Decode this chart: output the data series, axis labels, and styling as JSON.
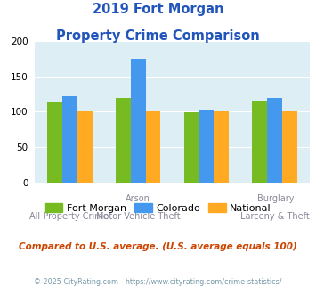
{
  "title_line1": "2019 Fort Morgan",
  "title_line2": "Property Crime Comparison",
  "title_color": "#2255bb",
  "cat_labels_top": [
    "",
    "Arson",
    "",
    "Burglary"
  ],
  "cat_labels_bot": [
    "All Property Crime",
    "Motor Vehicle Theft",
    "",
    "Larceny & Theft"
  ],
  "fort_morgan": [
    113,
    120,
    99,
    116
  ],
  "colorado": [
    122,
    175,
    103,
    120
  ],
  "national": [
    100,
    100,
    100,
    100
  ],
  "color_fm": "#77bb22",
  "color_co": "#4499ee",
  "color_na": "#ffaa22",
  "ylim": [
    0,
    200
  ],
  "yticks": [
    0,
    50,
    100,
    150,
    200
  ],
  "bg_color": "#ddeef5",
  "note": "Compared to U.S. average. (U.S. average equals 100)",
  "note_color": "#cc4400",
  "footer": "© 2025 CityRating.com - https://www.cityrating.com/crime-statistics/",
  "footer_color": "#7799aa",
  "legend_labels": [
    "Fort Morgan",
    "Colorado",
    "National"
  ],
  "bar_width": 0.22
}
